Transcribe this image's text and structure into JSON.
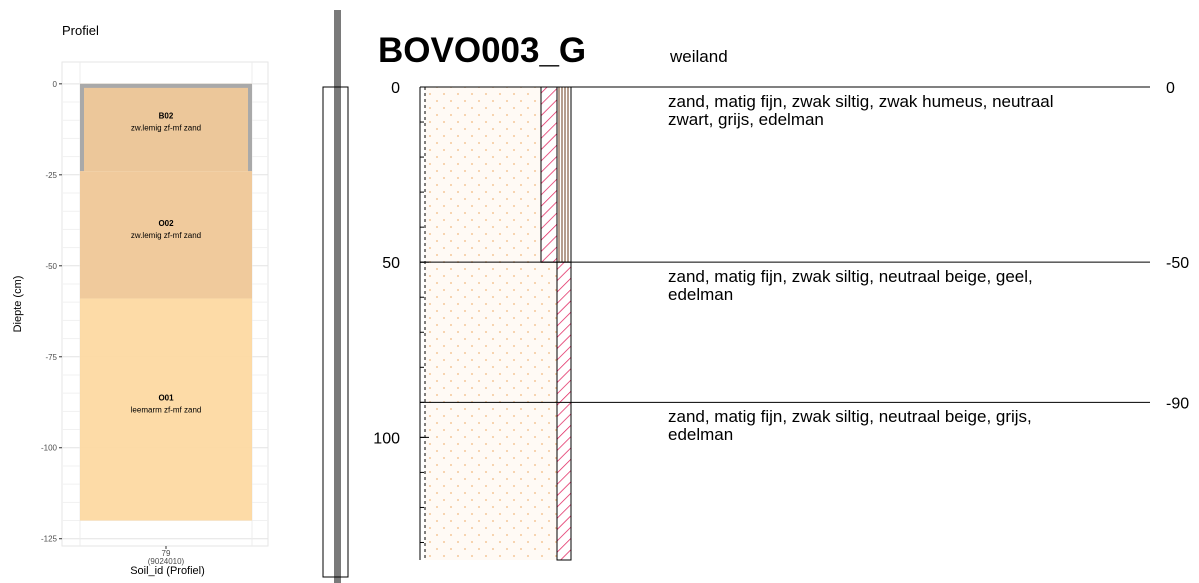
{
  "chart_data": [
    {
      "type": "profile",
      "title": "Profiel",
      "ylabel": "Diepte (cm)",
      "xlabel": "Soil_id (Profiel)",
      "categories": [
        "79\n(9024010)"
      ],
      "ylim": [
        -127,
        6
      ],
      "yticks": [
        0,
        -25,
        -50,
        -75,
        -100,
        -125
      ],
      "grid": true,
      "layers": [
        {
          "name": "B02",
          "description": "zw.lemig zf-mf zand",
          "top": 0,
          "bottom": -24,
          "color": "#ebc495",
          "outline": "#a9a9a9"
        },
        {
          "name": "O02",
          "description": "zw.lemig zf-mf zand",
          "top": -24,
          "bottom": -59,
          "color": "#efc797"
        },
        {
          "name": "O01",
          "description": "leemarm zf-mf zand",
          "top": -59,
          "bottom": -120,
          "color": "#fdd9a2"
        }
      ]
    },
    {
      "type": "boring-log",
      "title": "BOVO003_G",
      "subtitle": "weiland",
      "ylim": [
        0,
        135
      ],
      "yticks": [
        0,
        50,
        100
      ],
      "y2lim": [
        0,
        -135
      ],
      "y2ticks": [
        0,
        -50,
        -90
      ],
      "descriptions": [
        "zand, matig fijn, zwak siltig, zwak humeus, neutraal\nzwart, grijs, edelman",
        "zand, matig fijn, zwak siltig, neutraal beige, geel,\nedelman",
        "zand, matig fijn, zwak siltig, neutraal beige, grijs,\nedelman"
      ]
    }
  ]
}
